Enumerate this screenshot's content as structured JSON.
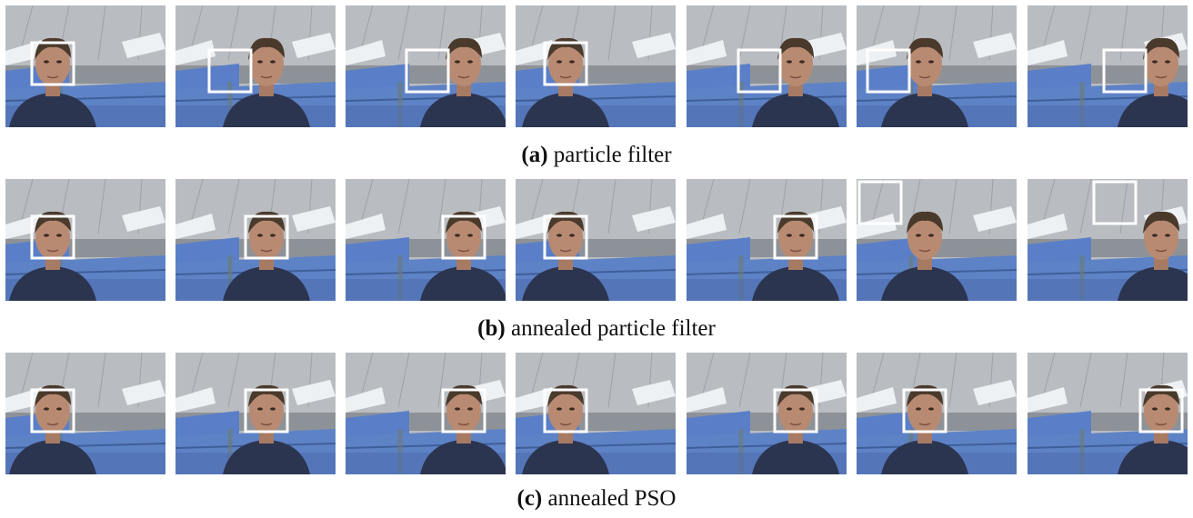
{
  "figure": {
    "rows": [
      {
        "id": "a",
        "label": "(a)",
        "text": " particle filter",
        "boxes": [
          {
            "on_face": true,
            "shift": 0.0
          },
          {
            "on_face": false,
            "shift": -0.3
          },
          {
            "on_face": false,
            "shift": -0.35
          },
          {
            "on_face": true,
            "shift": 0.0
          },
          {
            "on_face": false,
            "shift": -0.38
          },
          {
            "on_face": false,
            "shift": -0.12
          },
          {
            "on_face": false,
            "shift": -0.35
          }
        ]
      },
      {
        "id": "b",
        "label": "(b)",
        "text": " annealed particle filter",
        "boxes": [
          {
            "on_face": true,
            "shift": 0.0
          },
          {
            "on_face": true,
            "shift": 0.0
          },
          {
            "on_face": true,
            "shift": 0.0
          },
          {
            "on_face": true,
            "shift": 0.0
          },
          {
            "on_face": true,
            "shift": 0.0
          },
          {
            "on_face": false,
            "shift": -0.9
          },
          {
            "on_face": false,
            "shift": -0.6
          }
        ]
      },
      {
        "id": "c",
        "label": "(c)",
        "text": " annealed PSO",
        "boxes": [
          {
            "on_face": true,
            "shift": 0.0
          },
          {
            "on_face": true,
            "shift": 0.0
          },
          {
            "on_face": true,
            "shift": 0.0
          },
          {
            "on_face": true,
            "shift": 0.0
          },
          {
            "on_face": true,
            "shift": 0.0
          },
          {
            "on_face": true,
            "shift": 0.0
          },
          {
            "on_face": true,
            "shift": 0.0
          }
        ]
      }
    ],
    "colors": {
      "ceiling": "#b9bcc0",
      "light": "#eef1f4",
      "wall": "#8d9298",
      "cubicle": "#5a7fc8",
      "skin": "#b98a72",
      "hair": "#4a3a2c",
      "shirt": "#2c3550",
      "box": "#ffffff"
    }
  }
}
